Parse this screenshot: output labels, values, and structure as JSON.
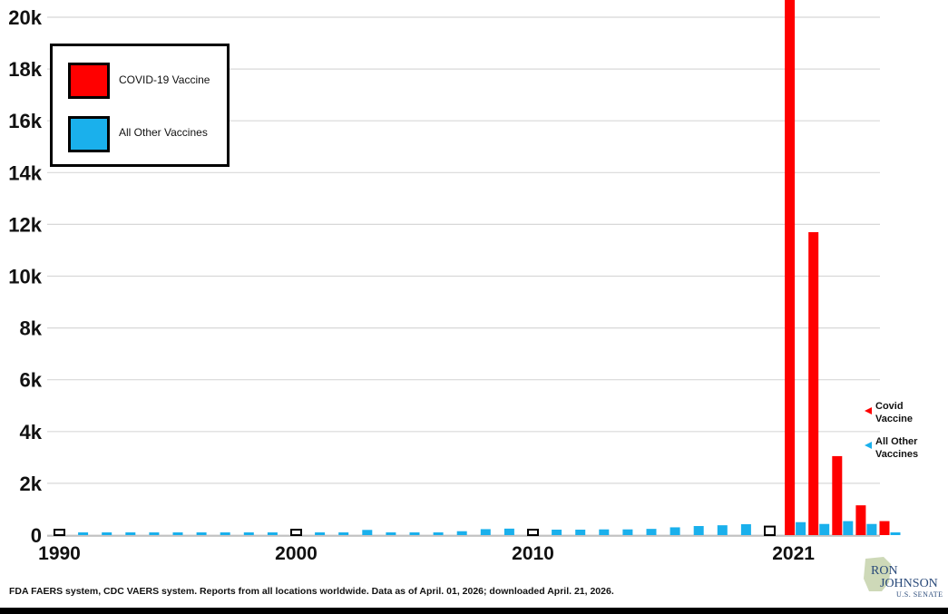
{
  "chart_data": {
    "type": "bar",
    "y_ticks": [
      0,
      2000,
      4000,
      6000,
      8000,
      10000,
      12000,
      14000,
      16000,
      18000,
      20000
    ],
    "y_tick_labels": [
      "0",
      "2k",
      "4k",
      "6k",
      "8k",
      "10k",
      "12k",
      "14k",
      "16k",
      "18k",
      "20k"
    ],
    "ylim": [
      0,
      20800
    ],
    "x_tick_labels": [
      {
        "year": "1990",
        "bar_index": 0
      },
      {
        "year": "2000",
        "bar_index": 10
      },
      {
        "year": "2010",
        "bar_index": 20
      },
      {
        "year": "2021",
        "bar_index": 31
      }
    ],
    "grid": true,
    "legend_position": "top-left",
    "series": [
      {
        "name": "All Other Vaccines",
        "color": "#1ab0ec",
        "bars": [
          {
            "year": 1990,
            "value": 80,
            "highlight": true
          },
          {
            "year": 1991,
            "value": 60
          },
          {
            "year": 1992,
            "value": 50
          },
          {
            "year": 1993,
            "value": 40
          },
          {
            "year": 1994,
            "value": 40
          },
          {
            "year": 1995,
            "value": 50
          },
          {
            "year": 1996,
            "value": 60
          },
          {
            "year": 1997,
            "value": 50
          },
          {
            "year": 1998,
            "value": 60
          },
          {
            "year": 1999,
            "value": 50
          },
          {
            "year": 2000,
            "value": 70,
            "highlight": true
          },
          {
            "year": 2001,
            "value": 60
          },
          {
            "year": 2002,
            "value": 50
          },
          {
            "year": 2003,
            "value": 200
          },
          {
            "year": 2004,
            "value": 90
          },
          {
            "year": 2005,
            "value": 90
          },
          {
            "year": 2006,
            "value": 90
          },
          {
            "year": 2007,
            "value": 150
          },
          {
            "year": 2008,
            "value": 230
          },
          {
            "year": 2009,
            "value": 250
          },
          {
            "year": 2010,
            "value": 200,
            "highlight": true
          },
          {
            "year": 2011,
            "value": 210
          },
          {
            "year": 2012,
            "value": 210
          },
          {
            "year": 2013,
            "value": 220
          },
          {
            "year": 2014,
            "value": 220
          },
          {
            "year": 2015,
            "value": 240
          },
          {
            "year": 2016,
            "value": 300
          },
          {
            "year": 2017,
            "value": 350
          },
          {
            "year": 2018,
            "value": 380
          },
          {
            "year": 2019,
            "value": 420
          },
          {
            "year": 2020,
            "value": 330,
            "highlight": true
          },
          {
            "year": 2021,
            "value": 500
          },
          {
            "year": 2022,
            "value": 430
          },
          {
            "year": 2023,
            "value": 540
          },
          {
            "year": 2024,
            "value": 430
          },
          {
            "year": 2025,
            "value": 0
          }
        ]
      },
      {
        "name": "COVID-19 Vaccine",
        "color": "#ff0000",
        "bars": [
          {
            "year": 2021,
            "value": 20800,
            "bar_index": 31
          },
          {
            "year": 2022,
            "value": 11700,
            "bar_index": 32
          },
          {
            "year": 2023,
            "value": 3050,
            "bar_index": 33
          },
          {
            "year": 2024,
            "value": 1150,
            "bar_index": 34
          },
          {
            "year": 2025,
            "value": 540,
            "bar_index": 35
          }
        ]
      }
    ]
  },
  "legend": {
    "covid_label": "COVID-19 Vaccine",
    "covid_color": "#ff0000",
    "other_label": "All Other Vaccines",
    "other_color": "#1ab0ec"
  },
  "side_labels": {
    "covid_line1": "Covid",
    "covid_line2": "Vaccine",
    "other_line1": "All Other",
    "other_line2": "Vaccines"
  },
  "source": "FDA FAERS system, CDC VAERS system. Reports from all locations worldwide. Data as of April. 01, 2026; downloaded April. 21, 2026.",
  "logo": {
    "line1": "RON",
    "line2": "JOHNSON",
    "line3": "U.S. SENATE"
  }
}
